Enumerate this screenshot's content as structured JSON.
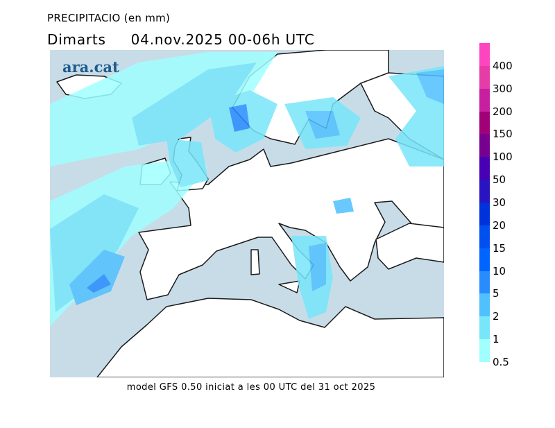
{
  "header": {
    "title": "PRECIPITACIO (en mm)",
    "day": "Dimarts",
    "date": "04.nov.2025",
    "period": "00-06h UTC"
  },
  "logo": "ara.cat",
  "footer": "model GFS 0.50 iniciat a les 00 UTC del 31 oct 2025",
  "map": {
    "colors": {
      "sea": "#c8dce8",
      "land": "#ffffff",
      "coast": "#1a1a1a"
    }
  },
  "legend": {
    "labels": [
      "400",
      "300",
      "200",
      "150",
      "100",
      "50",
      "30",
      "20",
      "15",
      "10",
      "5",
      "2",
      "1",
      "0.5"
    ],
    "colors": [
      "#ff44c0",
      "#e63ca8",
      "#c81ea0",
      "#a00078",
      "#780090",
      "#4800b4",
      "#2814c0",
      "#0032dc",
      "#0050f0",
      "#0064ff",
      "#288cff",
      "#50c0ff",
      "#78e6fa",
      "#a0ffff"
    ]
  }
}
